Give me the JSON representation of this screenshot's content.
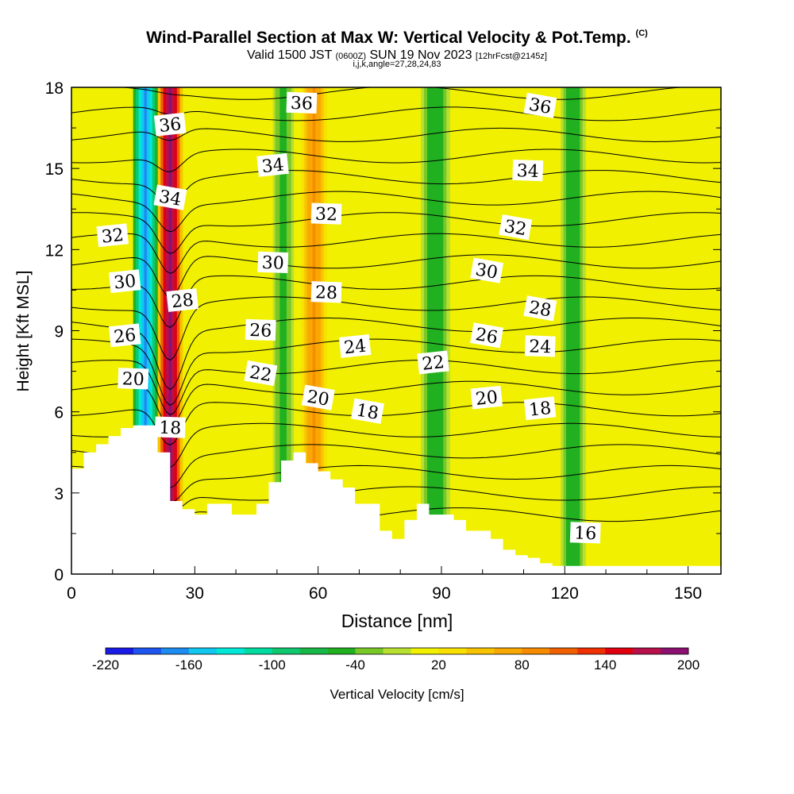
{
  "header": {
    "title": "Wind-Parallel Section at Max W: Vertical Velocity & Pot.Temp.",
    "title_mark": "(C)",
    "subtitle_valid": "Valid 1500 JST",
    "subtitle_utc": "(0600Z)",
    "subtitle_date": "SUN 19 Nov 2023",
    "subtitle_fcst": "[12hrFcst@2145z]",
    "subtitle_indices": "i,j,k,angle=27,28,24,83"
  },
  "chart_data": {
    "type": "heatmap",
    "xlabel": "Distance [nm]",
    "ylabel": "Height [Kft MSL]",
    "xlim": [
      0,
      158
    ],
    "ylim": [
      0,
      18
    ],
    "x_ticks": [
      0,
      30,
      60,
      90,
      120,
      150
    ],
    "y_ticks": [
      0,
      3,
      6,
      9,
      12,
      15,
      18
    ],
    "grid": false,
    "colorbar": {
      "label": "Vertical Velocity [cm/s]",
      "tick_labels": [
        "-220",
        "-160",
        "-100",
        "-40",
        "20",
        "80",
        "140",
        "200"
      ],
      "tick_values": [
        -220,
        -160,
        -100,
        -40,
        20,
        80,
        140,
        200
      ],
      "levels": [
        -220,
        -200,
        -180,
        -160,
        -140,
        -120,
        -100,
        -80,
        -60,
        -40,
        -20,
        0,
        20,
        40,
        60,
        80,
        100,
        120,
        140,
        160,
        180,
        200
      ],
      "colors": [
        "#1a1ae6",
        "#1f55f0",
        "#1c8cf0",
        "#10c8f0",
        "#00e8d8",
        "#00dca0",
        "#10c870",
        "#18b848",
        "#20b020",
        "#78c828",
        "#b8e030",
        "#f0f000",
        "#f8e000",
        "#f8c400",
        "#f8a800",
        "#f88c00",
        "#f06000",
        "#f03000",
        "#e00010",
        "#b8104a",
        "#8c1070"
      ]
    },
    "updraft_columns": [
      {
        "x": 18,
        "x_range": [
          15,
          21
        ],
        "w_cm_s": -180
      },
      {
        "x": 24,
        "x_range": [
          21,
          27
        ],
        "w_cm_s": 200
      },
      {
        "x": 59,
        "x_range": [
          56,
          62
        ],
        "w_cm_s": 90
      },
      {
        "x": 52,
        "x_range": [
          49,
          54
        ],
        "w_cm_s": -50
      },
      {
        "x": 88,
        "x_range": [
          85,
          92
        ],
        "w_cm_s": -60
      },
      {
        "x": 122,
        "x_range": [
          119,
          125
        ],
        "w_cm_s": -60
      }
    ],
    "theta_contour_labels": [
      {
        "text": "36",
        "x": 24,
        "y": 16.6
      },
      {
        "text": "36",
        "x": 56,
        "y": 17.4
      },
      {
        "text": "36",
        "x": 114,
        "y": 17.3
      },
      {
        "text": "34",
        "x": 49,
        "y": 15.1
      },
      {
        "text": "34",
        "x": 111,
        "y": 14.9
      },
      {
        "text": "34",
        "x": 24,
        "y": 13.9
      },
      {
        "text": "32",
        "x": 10,
        "y": 12.5
      },
      {
        "text": "32",
        "x": 62,
        "y": 13.3
      },
      {
        "text": "32",
        "x": 108,
        "y": 12.8
      },
      {
        "text": "30",
        "x": 13,
        "y": 10.8
      },
      {
        "text": "30",
        "x": 49,
        "y": 11.5
      },
      {
        "text": "30",
        "x": 101,
        "y": 11.2
      },
      {
        "text": "28",
        "x": 27,
        "y": 10.1
      },
      {
        "text": "28",
        "x": 62,
        "y": 10.4
      },
      {
        "text": "28",
        "x": 114,
        "y": 9.8
      },
      {
        "text": "26",
        "x": 13,
        "y": 8.8
      },
      {
        "text": "26",
        "x": 46,
        "y": 9.0
      },
      {
        "text": "26",
        "x": 101,
        "y": 8.8
      },
      {
        "text": "24",
        "x": 69,
        "y": 8.4
      },
      {
        "text": "24",
        "x": 114,
        "y": 8.4
      },
      {
        "text": "22",
        "x": 46,
        "y": 7.4
      },
      {
        "text": "22",
        "x": 88,
        "y": 7.8
      },
      {
        "text": "20",
        "x": 15,
        "y": 7.2
      },
      {
        "text": "20",
        "x": 60,
        "y": 6.5
      },
      {
        "text": "20",
        "x": 101,
        "y": 6.5
      },
      {
        "text": "18",
        "x": 24,
        "y": 5.4
      },
      {
        "text": "18",
        "x": 72,
        "y": 6.0
      },
      {
        "text": "18",
        "x": 114,
        "y": 6.1
      },
      {
        "text": "16",
        "x": 125,
        "y": 1.5
      }
    ],
    "terrain_kft": {
      "x": [
        0,
        3,
        3,
        6,
        6,
        9,
        9,
        12,
        12,
        15,
        15,
        18,
        18,
        21,
        21,
        24,
        24,
        27,
        27,
        30,
        30,
        33,
        33,
        36,
        36,
        39,
        39,
        45,
        45,
        48,
        48,
        51,
        51,
        54,
        54,
        57,
        57,
        60,
        60,
        63,
        63,
        66,
        66,
        69,
        69,
        75,
        75,
        78,
        78,
        81,
        81,
        84,
        84,
        87,
        87,
        93,
        93,
        96,
        96,
        102,
        102,
        105,
        105,
        108,
        108,
        111,
        111,
        114,
        114,
        117,
        117,
        120,
        120,
        158
      ],
      "y": [
        3.9,
        3.9,
        4.5,
        4.5,
        4.8,
        4.8,
        5.1,
        5.1,
        5.4,
        5.4,
        5.5,
        5.5,
        5.5,
        5.5,
        4.5,
        4.5,
        2.7,
        2.7,
        2.4,
        2.4,
        2.2,
        2.2,
        2.6,
        2.6,
        2.6,
        2.6,
        2.2,
        2.2,
        2.6,
        2.6,
        3.4,
        3.4,
        4.2,
        4.2,
        4.5,
        4.5,
        4.1,
        4.1,
        3.8,
        3.8,
        3.5,
        3.5,
        3.2,
        3.2,
        2.6,
        2.6,
        1.6,
        1.6,
        1.3,
        1.3,
        2.0,
        2.0,
        2.6,
        2.6,
        2.2,
        2.2,
        2.0,
        2.0,
        1.6,
        1.6,
        1.3,
        1.3,
        0.9,
        0.9,
        0.7,
        0.7,
        0.6,
        0.6,
        0.4,
        0.4,
        0.3,
        0.3,
        0.3,
        0.3
      ]
    },
    "theta_levels_K_offset": [
      16,
      17,
      18,
      19,
      20,
      21,
      22,
      23,
      24,
      25,
      26,
      27,
      28,
      29,
      30,
      31,
      32,
      33,
      34,
      35,
      36
    ]
  },
  "colors": {
    "background_field": "#f0f000",
    "terrain": "#ffffff",
    "contour": "#000000"
  }
}
